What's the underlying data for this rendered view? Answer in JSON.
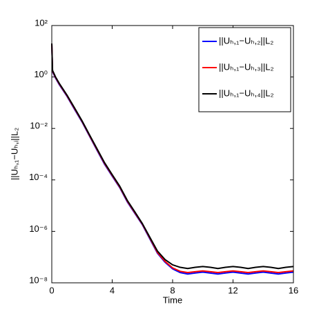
{
  "chart_data": {
    "type": "line",
    "xlabel": "Time",
    "ylabel": "||Uₕ,₁−Uₕ,ᵢ||L₂",
    "x": [
      0,
      0.05,
      0.25,
      0.5,
      1,
      1.5,
      2,
      2.5,
      3,
      3.5,
      4,
      4.5,
      5,
      5.5,
      6,
      6.5,
      7,
      7.5,
      8,
      8.5,
      9,
      9.5,
      10,
      10.5,
      11,
      11.5,
      12,
      12.5,
      13,
      13.5,
      14,
      14.5,
      15,
      15.5,
      16
    ],
    "series": [
      {
        "name": "||Uₕ,₁−Uₕ,₂||L₂",
        "color": "#0000ff",
        "values": [
          20,
          1.6,
          0.9,
          0.5,
          0.18,
          0.056,
          0.018,
          0.005,
          0.0014,
          0.0004,
          0.00014,
          5e-05,
          1.4e-05,
          5e-06,
          1.8e-06,
          5e-07,
          1.4e-07,
          6.3e-08,
          3.5e-08,
          2.5e-08,
          2.2e-08,
          2.4e-08,
          2.6e-08,
          2.4e-08,
          2.2e-08,
          2.4e-08,
          2.6e-08,
          2.4e-08,
          2.2e-08,
          2.4e-08,
          2.6e-08,
          2.4e-08,
          2.2e-08,
          2.4e-08,
          2.6e-08
        ]
      },
      {
        "name": "||Uₕ,₁−Uₕ,₃||L₂",
        "color": "#ff0000",
        "values": [
          20,
          1.7,
          0.95,
          0.53,
          0.19,
          0.06,
          0.019,
          0.0053,
          0.0015,
          0.00043,
          0.00015,
          5.3e-05,
          1.5e-05,
          5.3e-06,
          1.9e-06,
          5.4e-07,
          1.5e-07,
          6.8e-08,
          3.8e-08,
          2.8e-08,
          2.5e-08,
          2.7e-08,
          2.9e-08,
          2.7e-08,
          2.5e-08,
          2.7e-08,
          2.9e-08,
          2.7e-08,
          2.5e-08,
          2.7e-08,
          2.9e-08,
          2.7e-08,
          2.5e-08,
          2.7e-08,
          2.9e-08
        ]
      },
      {
        "name": "||Uₕ,₁−Uₕ,₄||L₂",
        "color": "#000000",
        "values": [
          20,
          1.8,
          1.0,
          0.56,
          0.2,
          0.064,
          0.02,
          0.0056,
          0.0016,
          0.00046,
          0.00016,
          5.7e-05,
          1.6e-05,
          5.7e-06,
          2e-06,
          5.8e-07,
          1.7e-07,
          8e-08,
          5e-08,
          4e-08,
          3.6e-08,
          4e-08,
          4.3e-08,
          4e-08,
          3.6e-08,
          4e-08,
          4.3e-08,
          4e-08,
          3.6e-08,
          4e-08,
          4.3e-08,
          4e-08,
          3.6e-08,
          4e-08,
          4.3e-08
        ]
      }
    ],
    "xlim": [
      0,
      16
    ],
    "xticks": [
      0,
      4,
      8,
      12,
      16
    ],
    "ylim": [
      1e-08,
      100
    ],
    "ylog": true,
    "yticks": [
      {
        "value": 1e-08,
        "label": "10⁻⁸"
      },
      {
        "value": 1e-06,
        "label": "10⁻⁶"
      },
      {
        "value": 0.0001,
        "label": "10⁻⁴"
      },
      {
        "value": 0.01,
        "label": "10⁻²"
      },
      {
        "value": 1,
        "label": "10⁰"
      },
      {
        "value": 100,
        "label": "10²"
      }
    ],
    "legend": "upper right"
  }
}
